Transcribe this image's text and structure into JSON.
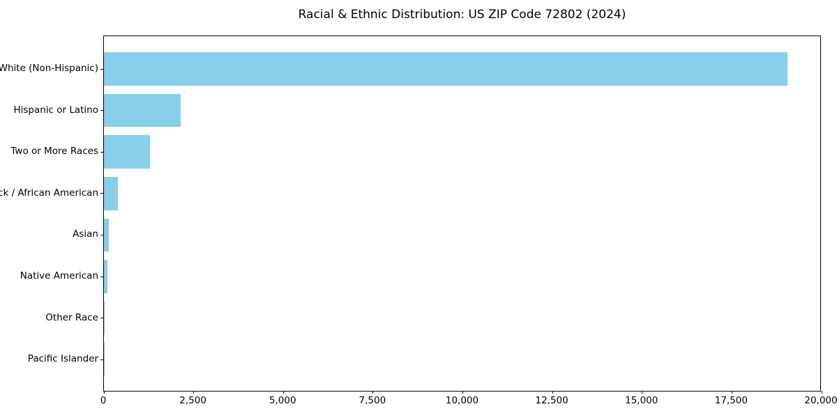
{
  "chart_data": {
    "type": "bar",
    "orientation": "horizontal",
    "title": "Racial & Ethnic Distribution: US ZIP Code 72802 (2024)",
    "categories": [
      "White (Non-Hispanic)",
      "Hispanic or Latino",
      "Two or More Races",
      "Black / African American",
      "Asian",
      "Native American",
      "Other Race",
      "Pacific Islander"
    ],
    "values": [
      19050,
      2130,
      1290,
      390,
      135,
      105,
      25,
      10
    ],
    "xlabel": "",
    "ylabel": "",
    "xlim": [
      0,
      20000
    ],
    "x_ticks": [
      0,
      2500,
      5000,
      7500,
      10000,
      12500,
      15000,
      17500,
      20000
    ],
    "x_tick_labels": [
      "0",
      "2,500",
      "5,000",
      "7,500",
      "10,000",
      "12,500",
      "15,000",
      "17,500",
      "20,000"
    ],
    "bar_color": "#87CEEB",
    "spine_color": "#000000",
    "background_color": "#ffffff",
    "grid": false,
    "legend": null
  }
}
